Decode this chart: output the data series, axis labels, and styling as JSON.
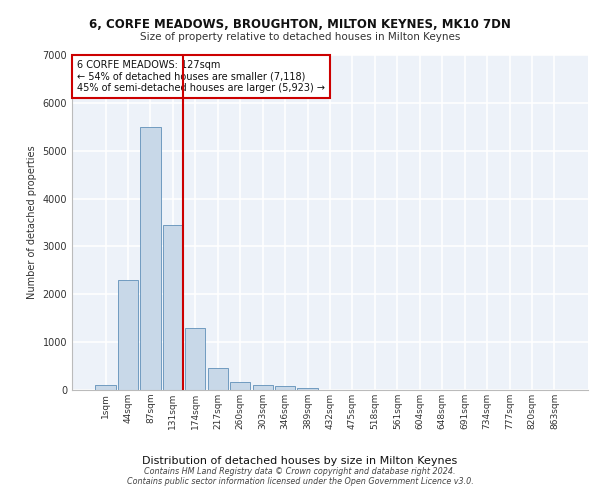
{
  "title_line1": "6, CORFE MEADOWS, BROUGHTON, MILTON KEYNES, MK10 7DN",
  "title_line2": "Size of property relative to detached houses in Milton Keynes",
  "xlabel": "Distribution of detached houses by size in Milton Keynes",
  "ylabel": "Number of detached properties",
  "footer_line1": "Contains HM Land Registry data © Crown copyright and database right 2024.",
  "footer_line2": "Contains public sector information licensed under the Open Government Licence v3.0.",
  "annotation_line1": "6 CORFE MEADOWS: 127sqm",
  "annotation_line2": "← 54% of detached houses are smaller (7,118)",
  "annotation_line3": "45% of semi-detached houses are larger (5,923) →",
  "bar_labels": [
    "1sqm",
    "44sqm",
    "87sqm",
    "131sqm",
    "174sqm",
    "217sqm",
    "260sqm",
    "303sqm",
    "346sqm",
    "389sqm",
    "432sqm",
    "475sqm",
    "518sqm",
    "561sqm",
    "604sqm",
    "648sqm",
    "691sqm",
    "734sqm",
    "777sqm",
    "820sqm",
    "863sqm"
  ],
  "bar_values": [
    100,
    2300,
    5500,
    3450,
    1300,
    450,
    175,
    100,
    75,
    50,
    0,
    0,
    0,
    0,
    0,
    0,
    0,
    0,
    0,
    0,
    0
  ],
  "bar_color": "#c8d8e8",
  "bar_edgecolor": "#6090b8",
  "vline_x_index": 3,
  "vline_color": "#cc0000",
  "ylim": [
    0,
    7000
  ],
  "yticks": [
    0,
    1000,
    2000,
    3000,
    4000,
    5000,
    6000,
    7000
  ],
  "bg_color": "#edf2f9",
  "grid_color": "#ffffff",
  "annotation_box_edgecolor": "#cc0000",
  "annotation_box_facecolor": "#ffffff"
}
